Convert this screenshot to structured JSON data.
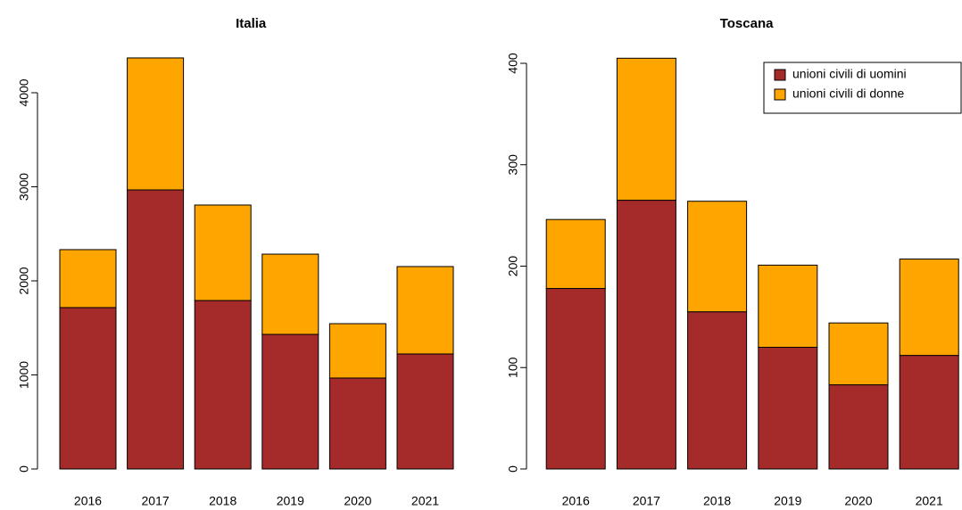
{
  "chart_data": [
    {
      "type": "bar",
      "stacked": true,
      "title": "Italia",
      "categories": [
        "2016",
        "2017",
        "2018",
        "2019",
        "2020",
        "2021"
      ],
      "series": [
        {
          "name": "unioni civili di uomini",
          "color": "#a52a2a",
          "values": [
            1716,
            2967,
            1791,
            1431,
            967,
            1223
          ]
        },
        {
          "name": "unioni civili di donne",
          "color": "#ffa500",
          "values": [
            616,
            1403,
            1015,
            853,
            578,
            929
          ]
        }
      ],
      "ylim": [
        0,
        4000
      ],
      "yticks": [
        0,
        1000,
        2000,
        3000,
        4000
      ]
    },
    {
      "type": "bar",
      "stacked": true,
      "title": "Toscana",
      "categories": [
        "2016",
        "2017",
        "2018",
        "2019",
        "2020",
        "2021"
      ],
      "series": [
        {
          "name": "unioni civili di uomini",
          "color": "#a52a2a",
          "values": [
            178,
            265,
            155,
            120,
            83,
            112
          ]
        },
        {
          "name": "unioni civili di donne",
          "color": "#ffa500",
          "values": [
            68,
            140,
            109,
            81,
            61,
            95
          ]
        }
      ],
      "ylim": [
        0,
        400
      ],
      "yticks": [
        0,
        100,
        200,
        300,
        400
      ],
      "legend": "top-right"
    }
  ]
}
